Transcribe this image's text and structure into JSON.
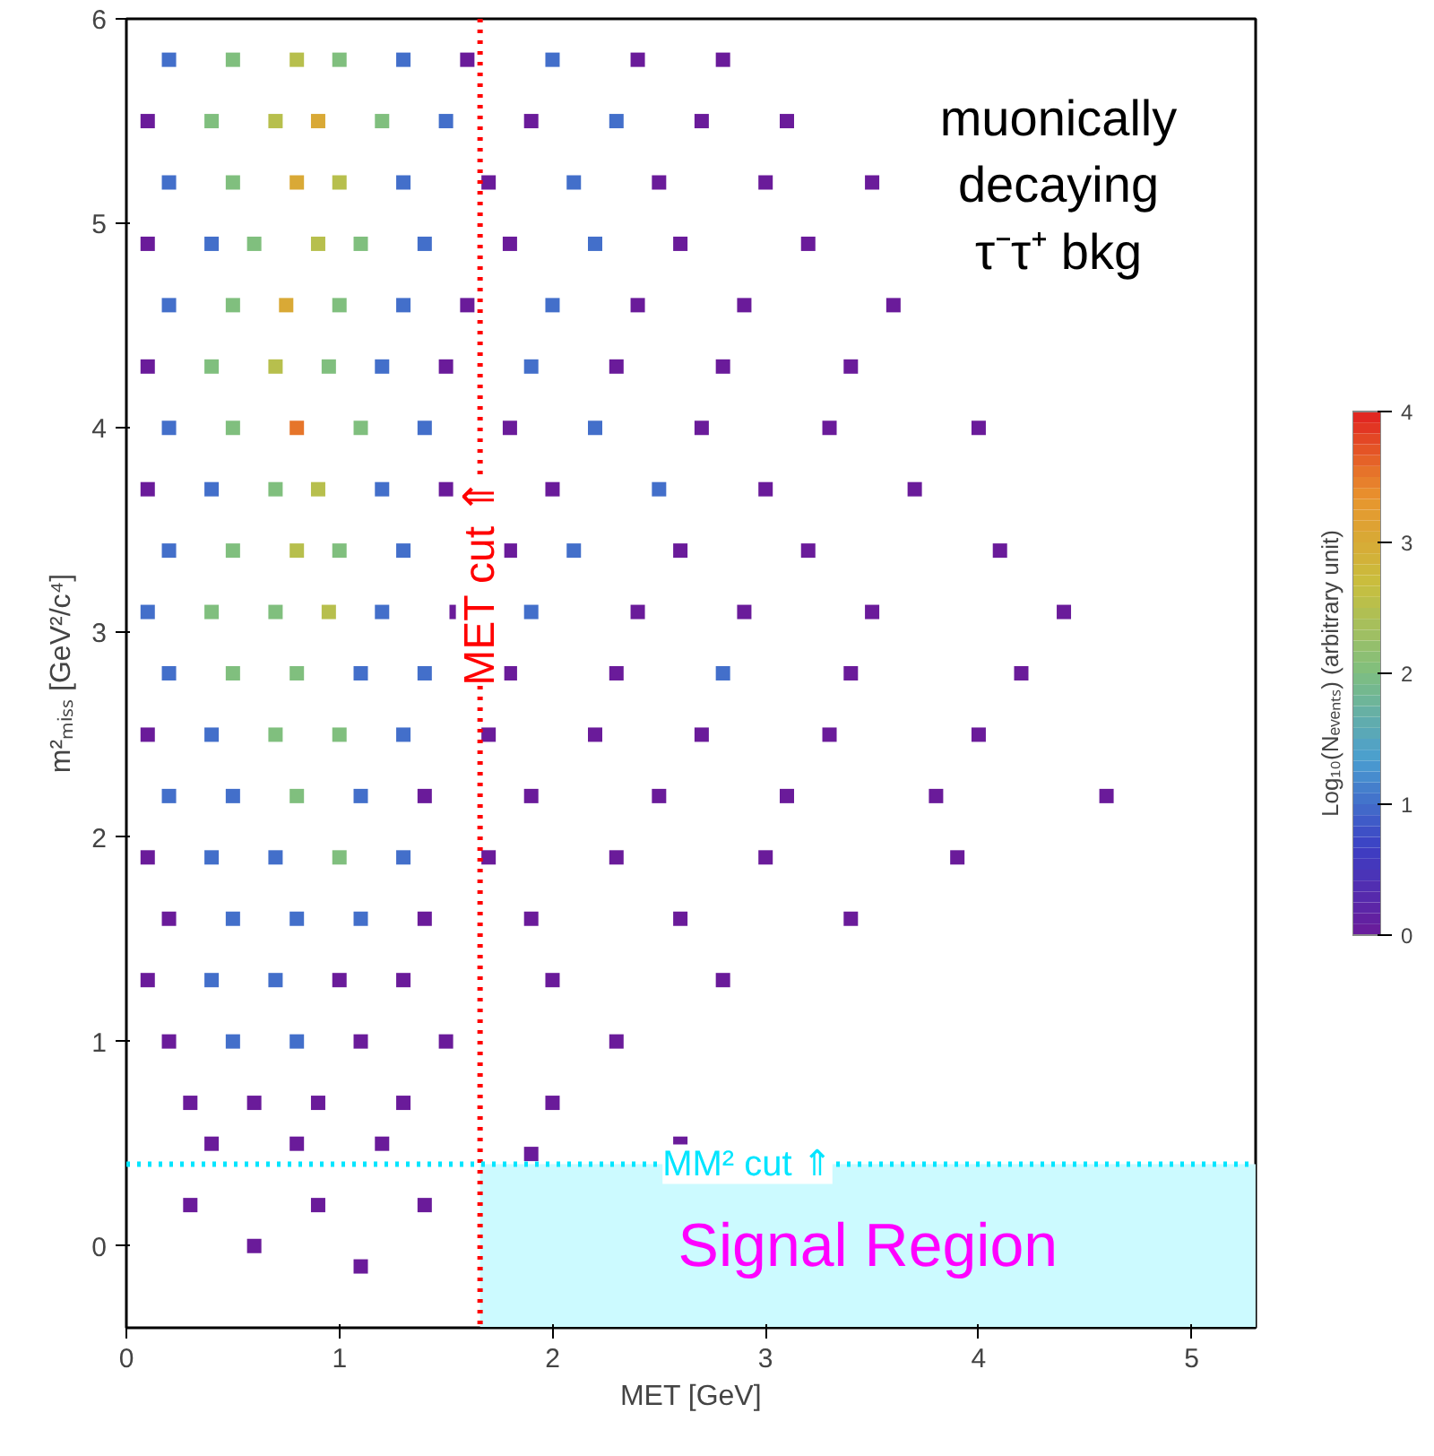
{
  "chart_data": {
    "type": "scatter",
    "marker": "square",
    "xlabel": "MET [GeV]",
    "ylabel": "m²ₘᵢₛₛ [GeV²/c⁴]",
    "clabel": "Log₁₀(Nₑᵥₑₙₜₛ) (arbitrary unit)",
    "xlim": [
      0,
      5.3
    ],
    "ylim": [
      -0.4,
      6
    ],
    "xticks": [
      0,
      1,
      2,
      3,
      4,
      5
    ],
    "yticks": [
      0,
      1,
      2,
      3,
      4,
      5,
      6
    ],
    "clim": [
      0,
      4
    ],
    "cticks": [
      0,
      1,
      2,
      3,
      4
    ],
    "grid": false,
    "annotations": [
      "muonically\ndecaying\nτ⁻τ⁺ bkg"
    ],
    "ref_lines": [
      {
        "axis": "x",
        "value": 1.66,
        "label": "MET cut ⇑",
        "color": "#ff0000",
        "line_style": "dotted"
      },
      {
        "axis": "y",
        "value": 0.4,
        "label": "MM² cut ⇑",
        "color": "#00e5ff",
        "line_style": "dotted"
      }
    ],
    "bands": [
      {
        "axis": "x",
        "from": 1.66,
        "to": 5.3,
        "label": "Signal Region",
        "color": "#ccfaff"
      }
    ],
    "x": [
      0.2,
      0.5,
      0.8,
      1.0,
      1.3,
      1.6,
      2.0,
      2.4,
      2.8,
      0.1,
      0.4,
      0.7,
      0.9,
      1.2,
      1.5,
      1.9,
      2.3,
      2.7,
      3.1,
      0.2,
      0.5,
      0.8,
      1.0,
      1.3,
      1.7,
      2.1,
      2.5,
      3.0,
      3.5,
      0.1,
      0.4,
      0.6,
      0.9,
      1.1,
      1.4,
      1.8,
      2.2,
      2.6,
      3.2,
      0.2,
      0.5,
      0.75,
      1.0,
      1.3,
      1.6,
      2.0,
      2.4,
      2.9,
      3.6,
      0.1,
      0.4,
      0.7,
      0.95,
      1.2,
      1.5,
      1.9,
      2.3,
      2.8,
      3.4,
      0.2,
      0.5,
      0.8,
      1.1,
      1.4,
      1.8,
      2.2,
      2.7,
      3.3,
      4.0,
      0.1,
      0.4,
      0.7,
      0.9,
      1.2,
      1.5,
      2.0,
      2.5,
      3.0,
      3.7,
      0.2,
      0.5,
      0.8,
      1.0,
      1.3,
      1.8,
      2.1,
      2.6,
      3.2,
      4.1,
      0.1,
      0.4,
      0.7,
      0.95,
      1.2,
      1.55,
      1.9,
      2.4,
      2.9,
      3.5,
      4.4,
      0.2,
      0.5,
      0.8,
      1.1,
      1.4,
      1.8,
      2.3,
      2.8,
      3.4,
      4.2,
      0.1,
      0.4,
      0.7,
      1.0,
      1.3,
      1.7,
      2.2,
      2.7,
      3.3,
      4.0,
      0.2,
      0.5,
      0.8,
      1.1,
      1.4,
      1.9,
      2.5,
      3.1,
      3.8,
      4.6,
      0.1,
      0.4,
      0.7,
      1.0,
      1.3,
      1.7,
      2.3,
      3.0,
      3.9,
      0.2,
      0.5,
      0.8,
      1.1,
      1.4,
      1.9,
      2.6,
      3.4,
      0.1,
      0.4,
      0.7,
      1.0,
      1.3,
      2.0,
      2.8,
      0.2,
      0.5,
      0.8,
      1.1,
      1.5,
      2.3,
      0.3,
      0.6,
      0.9,
      1.3,
      2.0,
      0.4,
      0.8,
      1.2,
      2.6,
      1.9,
      0.3,
      0.9,
      1.4,
      0.6,
      1.1
    ],
    "values": [
      5.8,
      5.8,
      5.8,
      5.8,
      5.8,
      5.8,
      5.8,
      5.8,
      5.8,
      5.5,
      5.5,
      5.5,
      5.5,
      5.5,
      5.5,
      5.5,
      5.5,
      5.5,
      5.5,
      5.2,
      5.2,
      5.2,
      5.2,
      5.2,
      5.2,
      5.2,
      5.2,
      5.2,
      5.2,
      4.9,
      4.9,
      4.9,
      4.9,
      4.9,
      4.9,
      4.9,
      4.9,
      4.9,
      4.9,
      4.6,
      4.6,
      4.6,
      4.6,
      4.6,
      4.6,
      4.6,
      4.6,
      4.6,
      4.6,
      4.3,
      4.3,
      4.3,
      4.3,
      4.3,
      4.3,
      4.3,
      4.3,
      4.3,
      4.3,
      4.0,
      4.0,
      4.0,
      4.0,
      4.0,
      4.0,
      4.0,
      4.0,
      4.0,
      4.0,
      3.7,
      3.7,
      3.7,
      3.7,
      3.7,
      3.7,
      3.7,
      3.7,
      3.7,
      3.7,
      3.4,
      3.4,
      3.4,
      3.4,
      3.4,
      3.4,
      3.4,
      3.4,
      3.4,
      3.4,
      3.1,
      3.1,
      3.1,
      3.1,
      3.1,
      3.1,
      3.1,
      3.1,
      3.1,
      3.1,
      3.1,
      2.8,
      2.8,
      2.8,
      2.8,
      2.8,
      2.8,
      2.8,
      2.8,
      2.8,
      2.8,
      2.5,
      2.5,
      2.5,
      2.5,
      2.5,
      2.5,
      2.5,
      2.5,
      2.5,
      2.5,
      2.2,
      2.2,
      2.2,
      2.2,
      2.2,
      2.2,
      2.2,
      2.2,
      2.2,
      2.2,
      1.9,
      1.9,
      1.9,
      1.9,
      1.9,
      1.9,
      1.9,
      1.9,
      1.9,
      1.6,
      1.6,
      1.6,
      1.6,
      1.6,
      1.6,
      1.6,
      1.6,
      1.3,
      1.3,
      1.3,
      1.3,
      1.3,
      1.3,
      1.3,
      1.0,
      1.0,
      1.0,
      1.0,
      1.0,
      1.0,
      0.7,
      0.7,
      0.7,
      0.7,
      0.7,
      0.5,
      0.5,
      0.5,
      0.5,
      0.45,
      0.2,
      0.2,
      0.2,
      0.0,
      -0.1
    ],
    "cvalues": [
      1,
      2,
      2.5,
      2,
      1,
      0,
      1,
      0,
      0,
      0,
      2,
      2.5,
      3,
      2,
      1,
      0,
      1,
      0,
      0,
      1,
      2,
      3,
      2.5,
      1,
      0,
      1,
      0,
      0,
      0,
      0,
      1,
      2,
      2.5,
      2,
      1,
      0,
      1,
      0,
      0,
      1,
      2,
      3,
      2,
      1,
      0,
      1,
      0,
      0,
      0,
      0,
      2,
      2.5,
      2,
      1,
      0,
      1,
      0,
      0,
      0,
      1,
      2,
      3.5,
      2,
      1,
      0,
      1,
      0,
      0,
      0,
      0,
      1,
      2,
      2.5,
      1,
      0,
      0,
      1,
      0,
      0,
      1,
      2,
      2.5,
      2,
      1,
      0,
      1,
      0,
      0,
      0,
      1,
      2,
      2,
      2.5,
      1,
      0,
      1,
      0,
      0,
      0,
      0,
      1,
      2,
      2,
      1,
      1,
      0,
      0,
      1,
      0,
      0,
      0,
      1,
      2,
      2,
      1,
      0,
      0,
      0,
      0,
      0,
      1,
      1,
      2,
      1,
      0,
      0,
      0,
      0,
      0,
      0,
      0,
      1,
      1,
      2,
      1,
      0,
      0,
      0,
      0,
      0,
      1,
      1,
      1,
      0,
      0,
      0,
      0,
      0,
      1,
      1,
      0,
      0,
      0,
      0,
      0,
      1,
      1,
      0,
      0,
      0,
      0,
      0,
      0,
      0,
      0,
      0,
      0,
      0,
      0,
      0,
      0,
      0,
      0,
      0,
      0
    ]
  }
}
